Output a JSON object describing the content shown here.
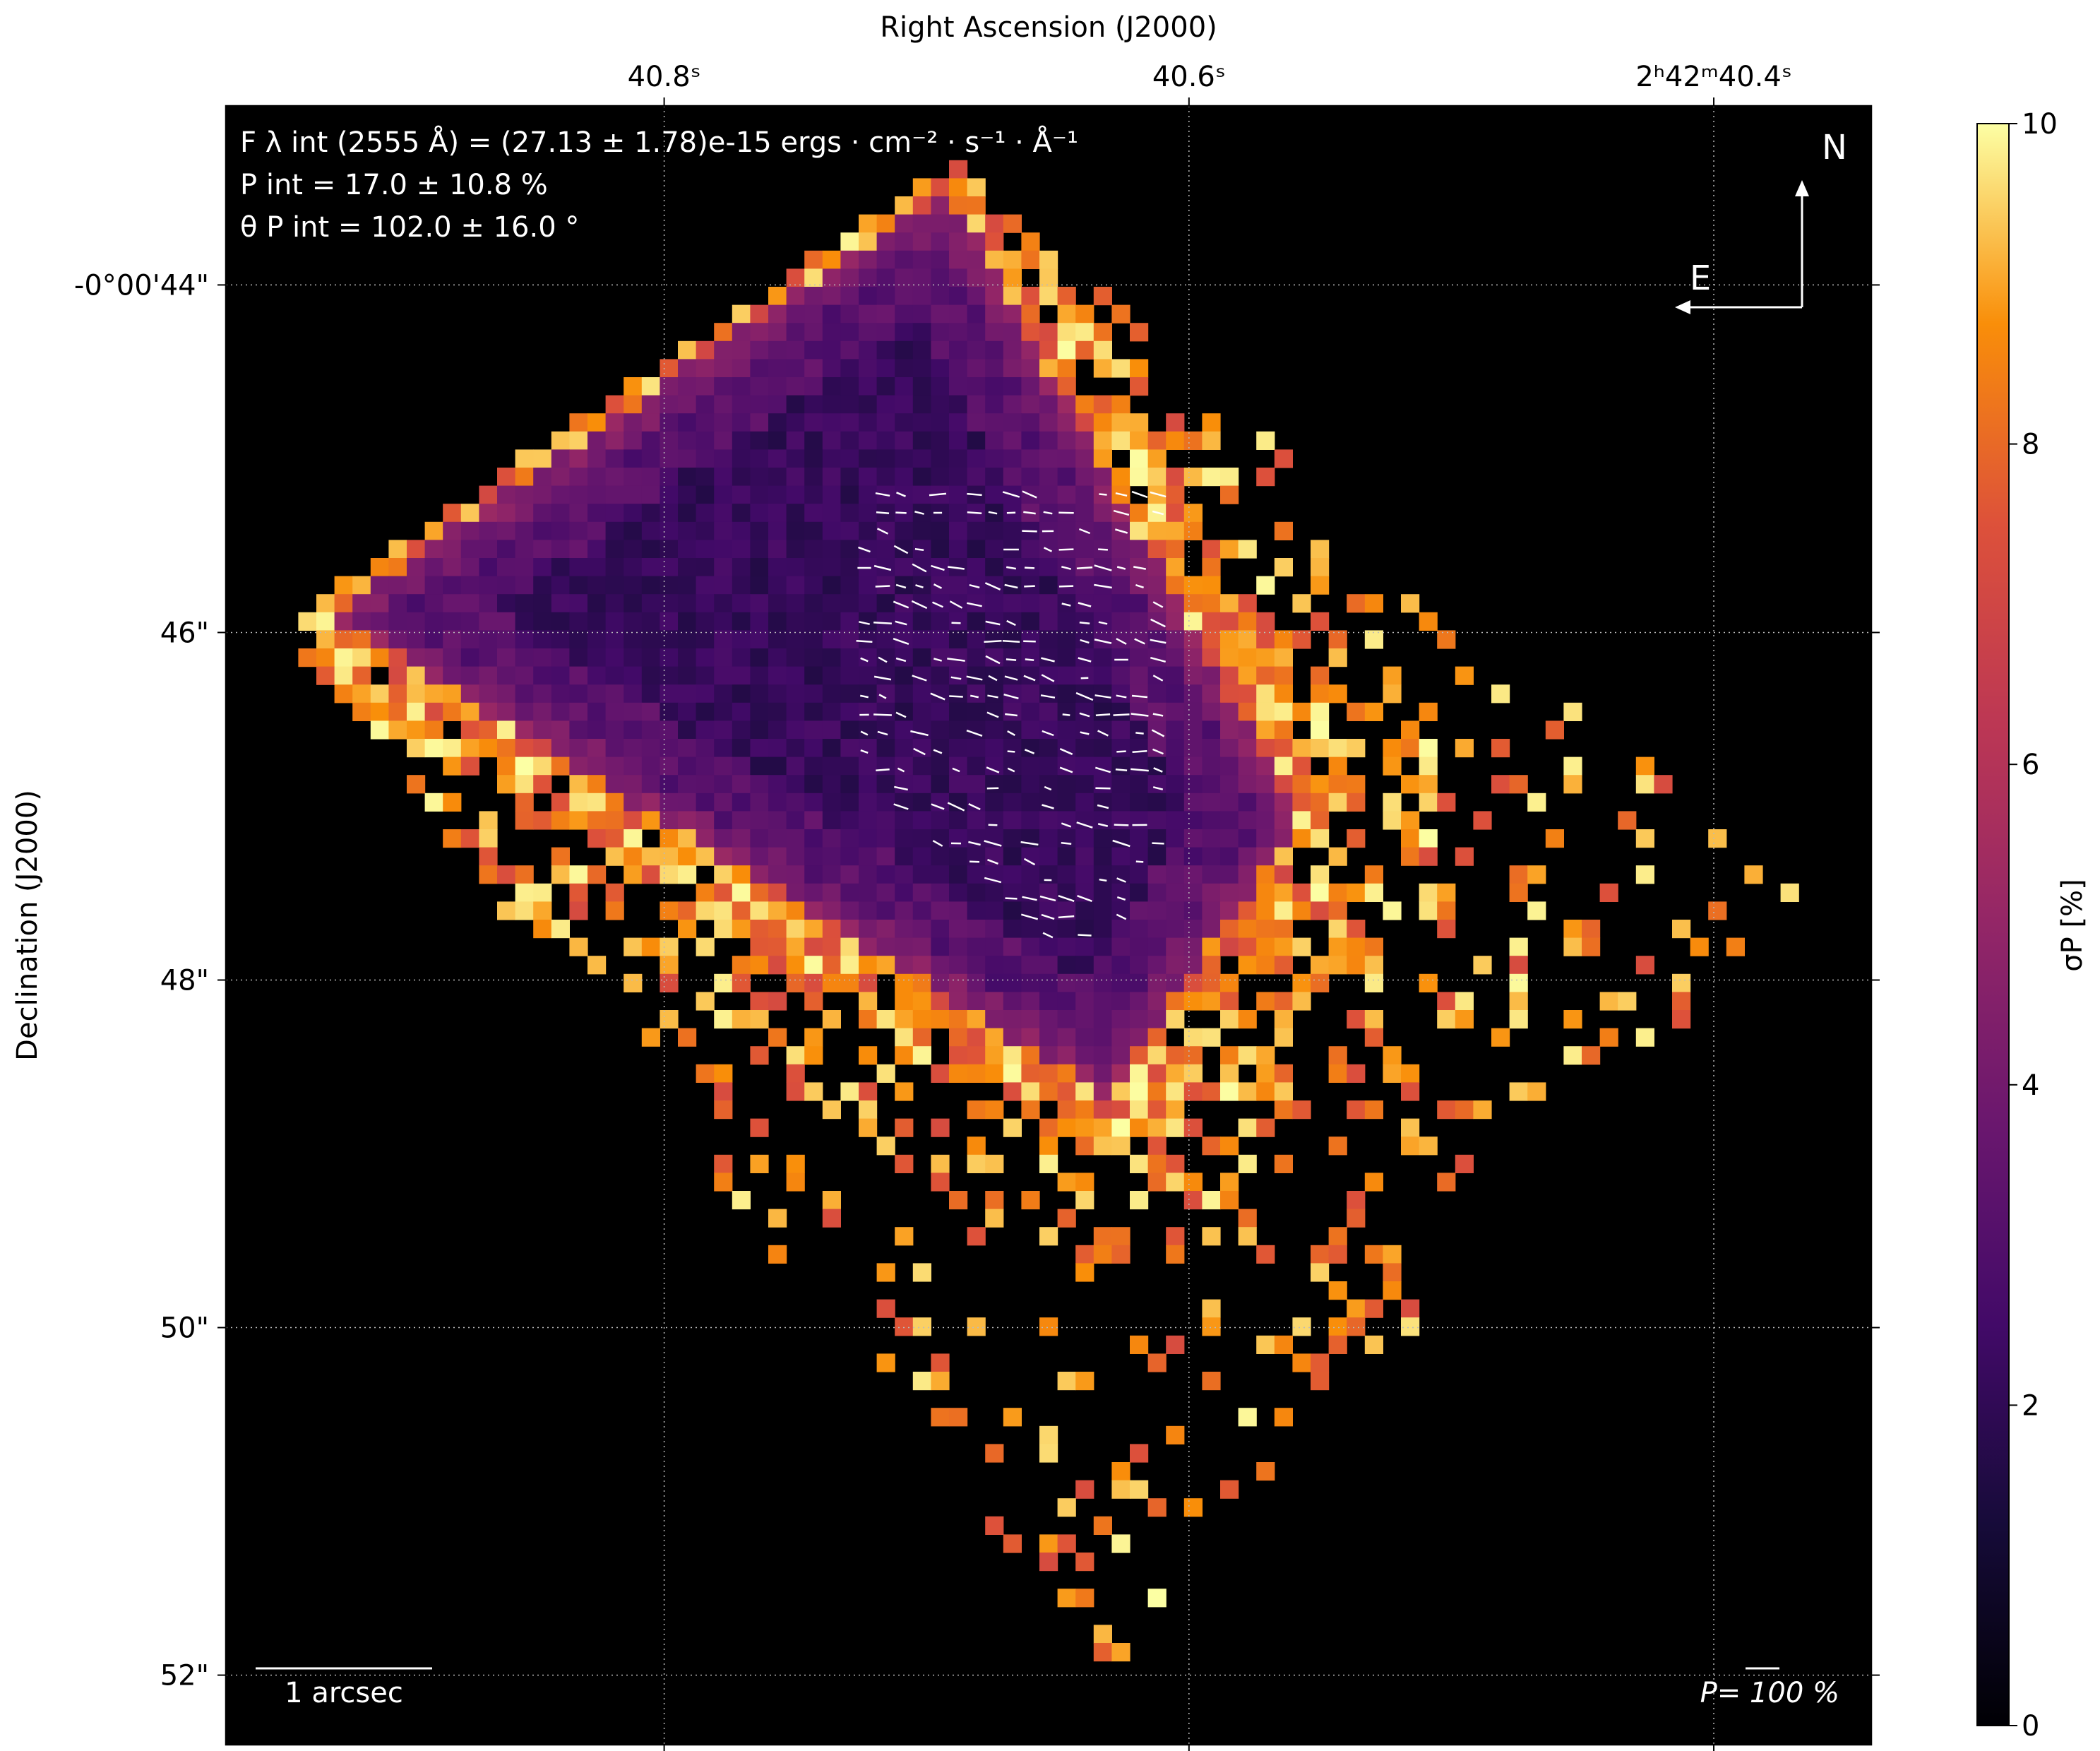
{
  "chart_data": {
    "type": "heatmap",
    "xlabel": "Right Ascension (J2000)",
    "ylabel": "Declination (J2000)",
    "x_ticks": [
      {
        "value": 40.8,
        "label": "40.8ˢ"
      },
      {
        "value": 40.6,
        "label": "40.6ˢ"
      },
      {
        "value": 40.4,
        "label": "2ʰ42ᵐ40.4ˢ"
      }
    ],
    "y_ticks": [
      {
        "value": 44,
        "label": "-0°00'44\""
      },
      {
        "value": 46,
        "label": "46\""
      },
      {
        "value": 48,
        "label": "48\""
      },
      {
        "value": 50,
        "label": "50\""
      },
      {
        "value": 52,
        "label": "52\""
      }
    ],
    "xlim": [
      40.967,
      40.34
    ],
    "ylim": [
      52.4,
      42.97
    ],
    "grid": true,
    "colorbar": {
      "label": "σP [%]",
      "range": [
        0,
        10
      ],
      "ticks": [
        "0",
        "2",
        "4",
        "6",
        "8",
        "10"
      ],
      "colormap": "inferno"
    },
    "annotations": {
      "flux": "F λ int (2555 Å) = (27.13 ± 1.78)e-15 ergs · cm⁻² · s⁻¹ · Å⁻¹",
      "polarization": "P int = 17.0 ± 10.8 %",
      "angle": "θ P int = 102.0 ± 16.0 °",
      "compass_north": "N",
      "compass_east": "E",
      "scale_bar": "1 arcsec",
      "vector_scale": "P= 100 %"
    },
    "vector_angle_deg": 102,
    "structure": {
      "inner_diamond": {
        "north": [
          40.69,
          43.3
        ],
        "east": [
          40.94,
          45.9
        ],
        "south": [
          40.63,
          48.8
        ],
        "west": [
          40.55,
          47.1
        ]
      },
      "outer_diamond": {
        "north": [
          40.69,
          43.3
        ],
        "east": [
          40.94,
          46.1
        ],
        "south": [
          40.63,
          52.0
        ],
        "west": [
          40.37,
          47.5
        ]
      }
    }
  }
}
